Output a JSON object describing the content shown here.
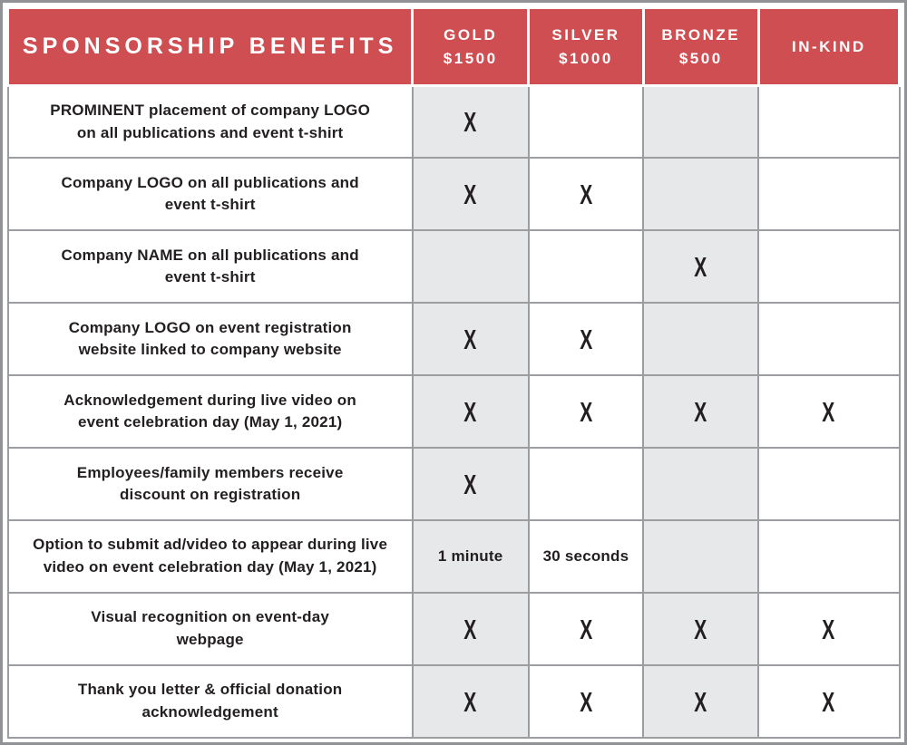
{
  "table": {
    "title": "SPONSORSHIP BENEFITS",
    "tiers": [
      {
        "name": "GOLD",
        "price": "$1500"
      },
      {
        "name": "SILVER",
        "price": "$1000"
      },
      {
        "name": "BRONZE",
        "price": "$500"
      },
      {
        "name": "IN-KIND",
        "price": ""
      }
    ],
    "rows": [
      {
        "benefit": "PROMINENT placement of company LOGO\non all publications and event t-shirt",
        "values": [
          "X",
          "",
          "",
          ""
        ]
      },
      {
        "benefit": "Company LOGO on all publications and\nevent t-shirt",
        "values": [
          "X",
          "X",
          "",
          ""
        ]
      },
      {
        "benefit": "Company NAME on all publications and\nevent t-shirt",
        "values": [
          "",
          "",
          "X",
          ""
        ]
      },
      {
        "benefit": "Company LOGO on event registration\nwebsite linked to company website",
        "values": [
          "X",
          "X",
          "",
          ""
        ]
      },
      {
        "benefit": "Acknowledgement during live video on\nevent celebration day (May 1, 2021)",
        "values": [
          "X",
          "X",
          "X",
          "X"
        ]
      },
      {
        "benefit": "Employees/family members receive\ndiscount on registration",
        "values": [
          "X",
          "",
          "",
          ""
        ]
      },
      {
        "benefit": "Option to submit ad/video to appear during live\nvideo on event celebration day (May 1, 2021)",
        "values": [
          "1 minute",
          "30 seconds",
          "",
          ""
        ]
      },
      {
        "benefit": "Visual recognition on event-day\nwebpage",
        "values": [
          "X",
          "X",
          "X",
          "X"
        ]
      },
      {
        "benefit": "Thank you letter & official donation\nacknowledgement",
        "values": [
          "X",
          "X",
          "X",
          "X"
        ]
      }
    ]
  },
  "colors": {
    "accent_red": "#cf4e52",
    "shaded_column": "#e7e8e9",
    "grid_border": "#9b9da0",
    "text": "#231f20"
  }
}
